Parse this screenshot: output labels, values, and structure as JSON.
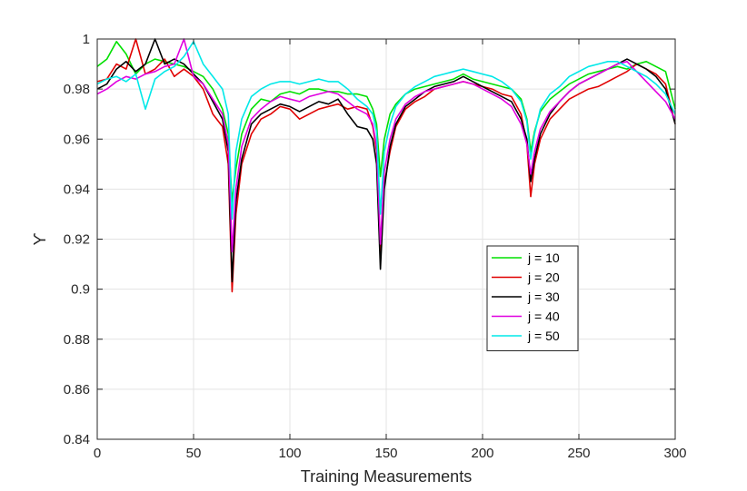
{
  "chart_data": {
    "type": "line",
    "title": "",
    "xlabel": "Training Measurements",
    "ylabel": "ϒ",
    "xlim": [
      0,
      300
    ],
    "ylim": [
      0.84,
      1.0
    ],
    "xticks": [
      0,
      50,
      100,
      150,
      200,
      250,
      300
    ],
    "yticks": [
      0.84,
      0.86,
      0.88,
      0.9,
      0.92,
      0.94,
      0.96,
      0.98,
      1.0
    ],
    "xtick_labels": [
      "0",
      "50",
      "100",
      "150",
      "200",
      "250",
      "300"
    ],
    "ytick_labels": [
      "0.84",
      "0.86",
      "0.88",
      "0.9",
      "0.92",
      "0.94",
      "0.96",
      "0.98",
      "1"
    ],
    "grid": true,
    "legend_position": "inside-right",
    "x": [
      0,
      5,
      10,
      15,
      20,
      25,
      30,
      35,
      40,
      45,
      50,
      55,
      60,
      65,
      68,
      70,
      72,
      75,
      80,
      85,
      90,
      95,
      100,
      105,
      110,
      115,
      120,
      125,
      130,
      135,
      140,
      143,
      145,
      147,
      149,
      152,
      155,
      160,
      165,
      170,
      175,
      180,
      185,
      190,
      195,
      200,
      205,
      210,
      215,
      220,
      223,
      225,
      227,
      230,
      235,
      240,
      245,
      250,
      255,
      260,
      265,
      270,
      275,
      280,
      285,
      290,
      295,
      300
    ],
    "series": [
      {
        "name": "j = 10",
        "color": "#00e000",
        "values": [
          0.989,
          0.992,
          0.999,
          0.994,
          0.986,
          0.99,
          0.992,
          0.991,
          0.99,
          0.989,
          0.987,
          0.985,
          0.98,
          0.972,
          0.962,
          0.935,
          0.948,
          0.962,
          0.972,
          0.976,
          0.975,
          0.978,
          0.979,
          0.978,
          0.98,
          0.98,
          0.979,
          0.979,
          0.978,
          0.978,
          0.977,
          0.972,
          0.966,
          0.945,
          0.96,
          0.97,
          0.974,
          0.978,
          0.98,
          0.981,
          0.982,
          0.983,
          0.984,
          0.986,
          0.984,
          0.983,
          0.982,
          0.981,
          0.98,
          0.976,
          0.968,
          0.955,
          0.963,
          0.971,
          0.976,
          0.979,
          0.982,
          0.984,
          0.986,
          0.987,
          0.988,
          0.989,
          0.988,
          0.99,
          0.991,
          0.989,
          0.987,
          0.972
        ]
      },
      {
        "name": "j = 20",
        "color": "#e00000",
        "values": [
          0.983,
          0.984,
          0.99,
          0.988,
          1.0,
          0.986,
          0.988,
          0.992,
          0.985,
          0.988,
          0.985,
          0.98,
          0.97,
          0.965,
          0.95,
          0.899,
          0.93,
          0.95,
          0.962,
          0.968,
          0.97,
          0.973,
          0.972,
          0.968,
          0.97,
          0.972,
          0.973,
          0.974,
          0.972,
          0.973,
          0.972,
          0.965,
          0.955,
          0.912,
          0.942,
          0.955,
          0.965,
          0.972,
          0.975,
          0.977,
          0.98,
          0.981,
          0.982,
          0.983,
          0.982,
          0.981,
          0.98,
          0.978,
          0.977,
          0.97,
          0.958,
          0.937,
          0.95,
          0.96,
          0.968,
          0.972,
          0.976,
          0.978,
          0.98,
          0.981,
          0.983,
          0.985,
          0.987,
          0.99,
          0.988,
          0.986,
          0.982,
          0.966
        ]
      },
      {
        "name": "j = 30",
        "color": "#000000",
        "values": [
          0.98,
          0.982,
          0.988,
          0.991,
          0.987,
          0.99,
          1.0,
          0.99,
          0.992,
          0.99,
          0.986,
          0.982,
          0.975,
          0.968,
          0.955,
          0.903,
          0.935,
          0.952,
          0.966,
          0.97,
          0.972,
          0.974,
          0.973,
          0.971,
          0.973,
          0.975,
          0.974,
          0.976,
          0.97,
          0.965,
          0.964,
          0.96,
          0.95,
          0.908,
          0.94,
          0.957,
          0.966,
          0.973,
          0.976,
          0.979,
          0.981,
          0.982,
          0.983,
          0.985,
          0.983,
          0.981,
          0.979,
          0.977,
          0.975,
          0.968,
          0.96,
          0.943,
          0.952,
          0.962,
          0.97,
          0.975,
          0.979,
          0.982,
          0.984,
          0.986,
          0.988,
          0.99,
          0.992,
          0.99,
          0.988,
          0.985,
          0.98,
          0.966
        ]
      },
      {
        "name": "j = 40",
        "color": "#e000e0",
        "values": [
          0.978,
          0.98,
          0.983,
          0.985,
          0.984,
          0.986,
          0.987,
          0.989,
          0.99,
          1.0,
          0.985,
          0.982,
          0.976,
          0.97,
          0.958,
          0.915,
          0.94,
          0.957,
          0.968,
          0.972,
          0.975,
          0.977,
          0.976,
          0.975,
          0.977,
          0.978,
          0.979,
          0.978,
          0.975,
          0.972,
          0.97,
          0.966,
          0.957,
          0.918,
          0.947,
          0.96,
          0.968,
          0.974,
          0.977,
          0.979,
          0.98,
          0.981,
          0.982,
          0.983,
          0.982,
          0.98,
          0.978,
          0.976,
          0.973,
          0.966,
          0.958,
          0.946,
          0.955,
          0.964,
          0.971,
          0.975,
          0.979,
          0.982,
          0.984,
          0.986,
          0.988,
          0.99,
          0.991,
          0.987,
          0.983,
          0.979,
          0.975,
          0.968
        ]
      },
      {
        "name": "j = 50",
        "color": "#00e8e8",
        "values": [
          0.982,
          0.984,
          0.985,
          0.983,
          0.986,
          0.972,
          0.984,
          0.987,
          0.989,
          0.993,
          0.999,
          0.99,
          0.985,
          0.98,
          0.97,
          0.928,
          0.955,
          0.968,
          0.977,
          0.98,
          0.982,
          0.983,
          0.983,
          0.982,
          0.983,
          0.984,
          0.983,
          0.983,
          0.98,
          0.976,
          0.973,
          0.97,
          0.963,
          0.93,
          0.955,
          0.966,
          0.973,
          0.978,
          0.981,
          0.983,
          0.985,
          0.986,
          0.987,
          0.988,
          0.987,
          0.986,
          0.985,
          0.983,
          0.98,
          0.975,
          0.967,
          0.952,
          0.962,
          0.972,
          0.978,
          0.981,
          0.985,
          0.987,
          0.989,
          0.99,
          0.991,
          0.991,
          0.989,
          0.987,
          0.985,
          0.982,
          0.978,
          0.97
        ]
      }
    ]
  }
}
